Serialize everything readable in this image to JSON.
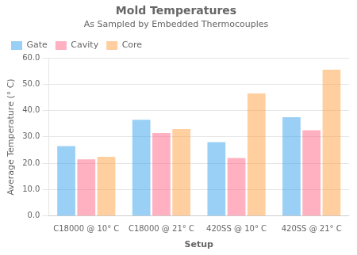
{
  "chart_data": {
    "type": "bar",
    "title": "Mold Temperatures",
    "subtitle": "As Sampled by Embedded Thermocouples",
    "xlabel": "Setup",
    "ylabel": "Average Temperature (° C)",
    "categories": [
      "C18000 @ 10° C",
      "C18000 @ 21° C",
      "420SS @ 10° C",
      "420SS @ 21° C"
    ],
    "series": [
      {
        "name": "Gate",
        "values": [
          26.5,
          36.5,
          28.0,
          37.5
        ]
      },
      {
        "name": "Cavity",
        "values": [
          21.5,
          31.5,
          22.0,
          32.5
        ]
      },
      {
        "name": "Core",
        "values": [
          22.5,
          33.0,
          46.5,
          55.5
        ]
      }
    ],
    "ylim": [
      0,
      60
    ],
    "yticks": [
      {
        "value": 0,
        "label": "0.0"
      },
      {
        "value": 10,
        "label": "10.0"
      },
      {
        "value": 20,
        "label": "20.0"
      },
      {
        "value": 30,
        "label": "30.0"
      },
      {
        "value": 40,
        "label": "40.0"
      },
      {
        "value": 50,
        "label": "50.0"
      },
      {
        "value": 60,
        "label": "60.0"
      }
    ],
    "grid": true,
    "legend": "upper left"
  }
}
